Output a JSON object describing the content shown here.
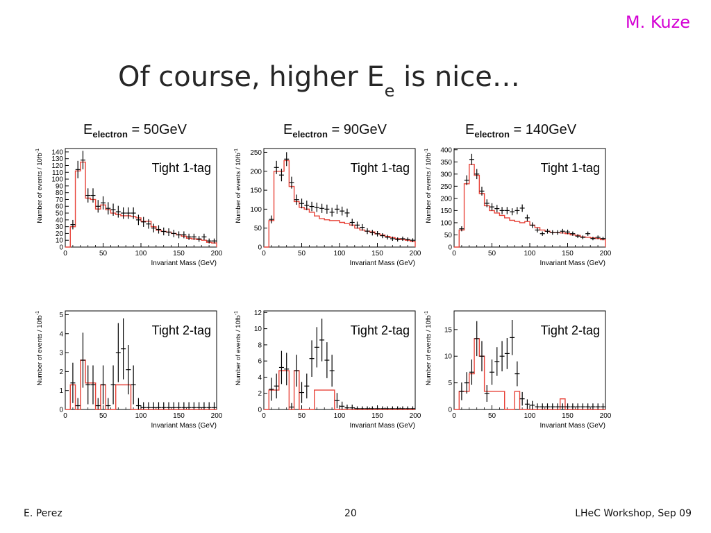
{
  "slide": {
    "author": "M. Kuze",
    "title_main": "Of course, higher E",
    "title_sub": "e",
    "title_end": " is nice…",
    "footer_left": "E. Perez",
    "footer_center": "20",
    "footer_right": "LHeC Workshop, Sep 09",
    "colors": {
      "author": "#d400d4",
      "mc": "#e8443a",
      "data": "#000000"
    }
  },
  "columns": [
    {
      "prefix": "E",
      "sub": "electron",
      "value": " = 50GeV"
    },
    {
      "prefix": "E",
      "sub": "electron",
      "value": " = 90GeV"
    },
    {
      "prefix": "E",
      "sub": "electron",
      "value": " = 140GeV"
    }
  ],
  "chart_data": [
    {
      "type": "histogram",
      "label": "Tight 1-tag",
      "xlabel": "Invariant Mass (GeV)",
      "ylabel": "Number of events / 10fb",
      "xlim": [
        0,
        200
      ],
      "ylim": [
        0,
        145
      ],
      "yticks": [
        0,
        10,
        20,
        30,
        40,
        50,
        60,
        70,
        80,
        90,
        100,
        110,
        120,
        130,
        140
      ],
      "xticks": [
        0,
        50,
        100,
        150,
        200
      ],
      "bin_width": 6.67,
      "mc": [
        0,
        30,
        112,
        125,
        72,
        70,
        56,
        62,
        55,
        50,
        48,
        46,
        46,
        45,
        43,
        38,
        38,
        30,
        25,
        23,
        22,
        20,
        18,
        16,
        13,
        12,
        11,
        10,
        7,
        6
      ],
      "data": [
        0,
        33,
        114,
        128,
        76,
        76,
        60,
        65,
        57,
        55,
        52,
        50,
        50,
        50,
        40,
        37,
        34,
        28,
        26,
        23,
        22,
        20,
        18,
        18,
        15,
        15,
        12,
        15,
        9,
        9
      ]
    },
    {
      "type": "histogram",
      "label": "Tight 1-tag",
      "xlabel": "Invariant Mass (GeV)",
      "ylabel": "Number of events / 10fb",
      "xlim": [
        0,
        200
      ],
      "ylim": [
        0,
        260
      ],
      "yticks": [
        0,
        50,
        100,
        150,
        200,
        250
      ],
      "xticks": [
        0,
        50,
        100,
        150,
        200
      ],
      "bin_width": 6.67,
      "mc": [
        0,
        70,
        200,
        200,
        228,
        160,
        120,
        105,
        100,
        92,
        82,
        75,
        72,
        70,
        70,
        65,
        62,
        58,
        50,
        45,
        42,
        40,
        35,
        32,
        28,
        25,
        22,
        20,
        18,
        15
      ],
      "data": [
        0,
        73,
        210,
        190,
        232,
        170,
        125,
        115,
        110,
        107,
        105,
        102,
        100,
        92,
        100,
        95,
        90,
        65,
        58,
        52,
        42,
        38,
        35,
        30,
        26,
        22,
        20,
        22,
        20,
        18
      ]
    },
    {
      "type": "histogram",
      "label": "Tight 1-tag",
      "xlabel": "Invariant Mass (GeV)",
      "ylabel": "Number of events / 10fb",
      "xlim": [
        0,
        200
      ],
      "ylim": [
        0,
        405
      ],
      "yticks": [
        0,
        50,
        100,
        150,
        200,
        250,
        300,
        350,
        400
      ],
      "xticks": [
        0,
        50,
        100,
        150,
        200
      ],
      "bin_width": 6.67,
      "mc": [
        0,
        70,
        260,
        340,
        295,
        220,
        170,
        150,
        140,
        130,
        120,
        110,
        105,
        100,
        105,
        90,
        80,
        70,
        65,
        60,
        60,
        58,
        55,
        50,
        48,
        42,
        40,
        38,
        35,
        30
      ],
      "data": [
        0,
        75,
        275,
        360,
        300,
        230,
        180,
        165,
        158,
        150,
        150,
        145,
        150,
        160,
        120,
        90,
        70,
        55,
        65,
        60,
        60,
        65,
        62,
        55,
        45,
        40,
        55,
        35,
        40,
        35
      ]
    },
    {
      "type": "histogram",
      "label": "Tight 2-tag",
      "xlabel": "Invariant Mass (GeV)",
      "ylabel": "Number of events / 10fb",
      "xlim": [
        0,
        200
      ],
      "ylim": [
        0,
        5.2
      ],
      "yticks": [
        0,
        1,
        2,
        3,
        4,
        5
      ],
      "xticks": [
        0,
        50,
        100,
        150,
        200
      ],
      "bin_width": 6.67,
      "mc": [
        0,
        1.3,
        0,
        2.6,
        1.4,
        1.4,
        0,
        1.3,
        0,
        0,
        1.3,
        1.3,
        1.3,
        0,
        0,
        0,
        0,
        0,
        0,
        0,
        0,
        0,
        0,
        0,
        0,
        0,
        0,
        0,
        0,
        0
      ],
      "data": [
        0,
        1.4,
        0.2,
        2.6,
        1.3,
        1.3,
        0.2,
        1.3,
        0.2,
        1.3,
        3.0,
        3.2,
        2.1,
        1.3,
        0.2,
        0.1,
        0.1,
        0.1,
        0.1,
        0.1,
        0.1,
        0.1,
        0.1,
        0.1,
        0.1,
        0.1,
        0.1,
        0.1,
        0.1,
        0.1
      ]
    },
    {
      "type": "histogram",
      "label": "Tight 2-tag",
      "xlabel": "Invariant Mass (GeV)",
      "ylabel": "Number of events / 10fb",
      "xlim": [
        0,
        200
      ],
      "ylim": [
        0,
        12.2
      ],
      "yticks": [
        0,
        2,
        4,
        6,
        8,
        10,
        12
      ],
      "xticks": [
        0,
        50,
        100,
        150,
        200
      ],
      "bin_width": 6.67,
      "mc": [
        0,
        2.4,
        2.4,
        4.8,
        4.8,
        0,
        4.8,
        0,
        0,
        0,
        2.4,
        2.4,
        2.4,
        2.4,
        0,
        0,
        0,
        0,
        0,
        0,
        0,
        0,
        0,
        0,
        0,
        0,
        0,
        0,
        0,
        0
      ],
      "data": [
        0,
        2.5,
        2.9,
        5.2,
        5.0,
        0.3,
        4.8,
        2.1,
        2.9,
        6.3,
        7.7,
        8.6,
        6.1,
        4.8,
        1.1,
        0.4,
        0.2,
        0.2,
        0.1,
        0.1,
        0.1,
        0.1,
        0.1,
        0.1,
        0.1,
        0.1,
        0.1,
        0.1,
        0.1,
        0.1
      ]
    },
    {
      "type": "histogram",
      "label": "Tight 2-tag",
      "xlabel": "Invariant Mass (GeV)",
      "ylabel": "Number of events / 10fb",
      "xlim": [
        0,
        200
      ],
      "ylim": [
        0,
        18.5
      ],
      "yticks": [
        0,
        5,
        10,
        15
      ],
      "xticks": [
        0,
        50,
        100,
        150,
        200
      ],
      "bin_width": 6.67,
      "mc": [
        0,
        3.4,
        3.4,
        6.7,
        13.3,
        10,
        3.4,
        3.4,
        3.4,
        3.4,
        0,
        0,
        3.4,
        0,
        0,
        0,
        0,
        0,
        0,
        0,
        0,
        2.0,
        0,
        0,
        0,
        0,
        0,
        0,
        0,
        0
      ],
      "data": [
        0,
        3.4,
        5.0,
        7.0,
        13.3,
        10,
        3.0,
        7.0,
        9.0,
        10,
        10.5,
        13.5,
        6.7,
        2.0,
        1.0,
        0.8,
        0.5,
        0.5,
        0.5,
        0.5,
        0.5,
        0.5,
        0.5,
        0.5,
        0.5,
        0.5,
        0.5,
        0.5,
        0.5,
        0.5
      ]
    }
  ]
}
